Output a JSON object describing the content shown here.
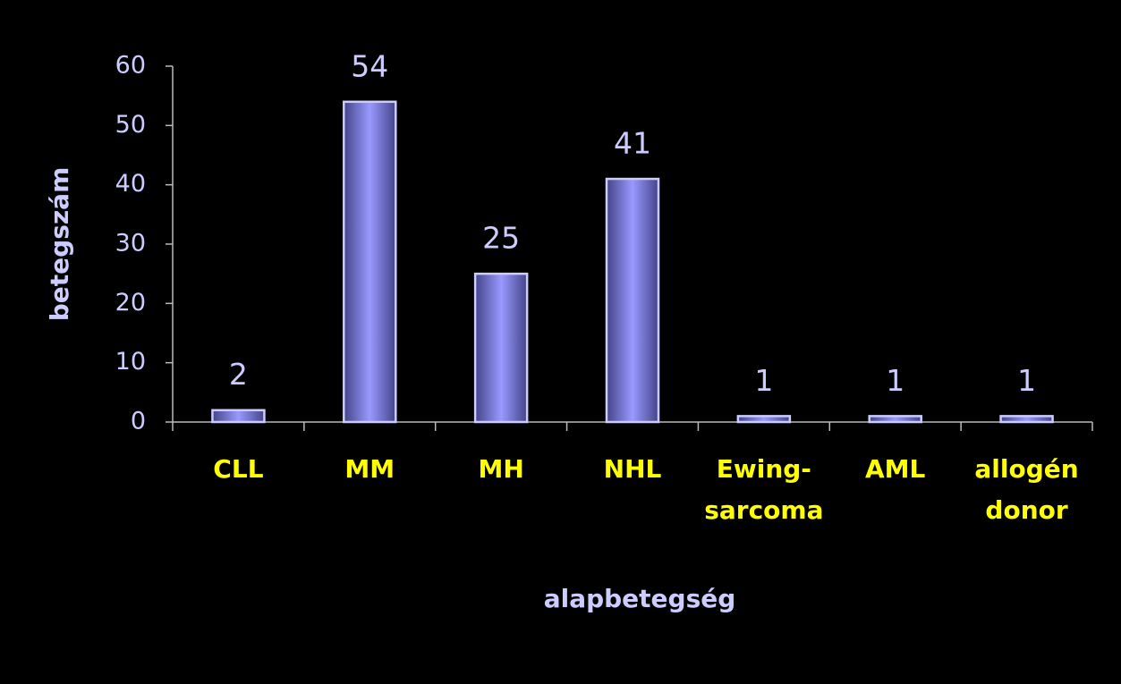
{
  "chart_data": {
    "type": "bar",
    "x_label": "alapbetegség",
    "y_label": "betegszám",
    "categories": [
      "CLL",
      "MM",
      "MH",
      "NHL",
      "Ewing-\nsarcoma",
      "AML",
      "allogén\ndonor"
    ],
    "values": [
      2,
      54,
      25,
      41,
      1,
      1,
      1
    ],
    "color": "#9999ff",
    "ylim": [
      0,
      60
    ],
    "yticks": [
      0,
      10,
      20,
      30,
      40,
      50,
      60
    ]
  }
}
